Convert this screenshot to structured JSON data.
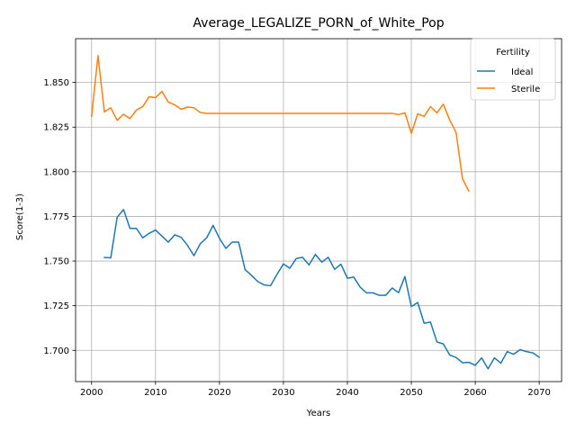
{
  "chart_data": {
    "type": "line",
    "title": "Average_LEGALIZE_PORN_of_White_Pop",
    "xlabel": "Years",
    "ylabel": "Score(1-3)",
    "xlim": [
      1997.5,
      2073.5
    ],
    "ylim": [
      1.6825,
      1.8745
    ],
    "xticks": [
      2000,
      2010,
      2020,
      2030,
      2040,
      2050,
      2060,
      2070
    ],
    "xtick_labels": [
      "2000",
      "2010",
      "2020",
      "2030",
      "2040",
      "2050",
      "2060",
      "2070"
    ],
    "yticks": [
      1.7,
      1.725,
      1.75,
      1.775,
      1.8,
      1.825,
      1.85
    ],
    "ytick_labels": [
      "1.700",
      "1.725",
      "1.750",
      "1.775",
      "1.800",
      "1.825",
      "1.850"
    ],
    "grid": true,
    "legend": {
      "title": "Fertility",
      "position": "top-right"
    },
    "series": [
      {
        "name": "Ideal",
        "color": "#1f77b4",
        "x": [
          2002,
          2003,
          2004,
          2005,
          2006,
          2007,
          2008,
          2009,
          2010,
          2011,
          2012,
          2013,
          2014,
          2015,
          2016,
          2017,
          2018,
          2019,
          2020,
          2021,
          2022,
          2023,
          2024,
          2025,
          2026,
          2027,
          2028,
          2029,
          2030,
          2031,
          2032,
          2033,
          2034,
          2035,
          2036,
          2037,
          2038,
          2039,
          2040,
          2041,
          2042,
          2043,
          2044,
          2045,
          2046,
          2047,
          2048,
          2049,
          2050,
          2051,
          2052,
          2053,
          2054,
          2055,
          2056,
          2057,
          2058,
          2059,
          2060,
          2061,
          2062,
          2063,
          2064,
          2065,
          2066,
          2067,
          2068,
          2069,
          2070
        ],
        "y": [
          1.752,
          1.7518,
          1.7745,
          1.7788,
          1.7683,
          1.7683,
          1.763,
          1.7655,
          1.7674,
          1.764,
          1.7606,
          1.7647,
          1.7633,
          1.7588,
          1.753,
          1.7597,
          1.763,
          1.77,
          1.7627,
          1.7571,
          1.7606,
          1.7606,
          1.7452,
          1.742,
          1.7385,
          1.7366,
          1.7362,
          1.7426,
          1.7484,
          1.746,
          1.7514,
          1.7521,
          1.7478,
          1.7537,
          1.7494,
          1.7521,
          1.7454,
          1.7482,
          1.7404,
          1.741,
          1.7354,
          1.7322,
          1.7322,
          1.7308,
          1.7308,
          1.7349,
          1.7323,
          1.7413,
          1.7245,
          1.7268,
          1.7152,
          1.7158,
          1.7047,
          1.7036,
          1.6974,
          1.696,
          1.6931,
          1.6933,
          1.6916,
          1.6958,
          1.6897,
          1.6958,
          1.6928,
          1.6993,
          1.6978,
          1.7004,
          1.6993,
          1.6986,
          1.6961
        ]
      },
      {
        "name": "Sterile",
        "color": "#ff7f0e",
        "x": [
          2000,
          2001,
          2002,
          2003,
          2004,
          2005,
          2006,
          2007,
          2008,
          2009,
          2010,
          2011,
          2012,
          2013,
          2014,
          2015,
          2016,
          2017,
          2018,
          2019,
          2020,
          2021,
          2022,
          2023,
          2024,
          2025,
          2026,
          2027,
          2028,
          2029,
          2030,
          2031,
          2032,
          2033,
          2034,
          2035,
          2036,
          2037,
          2038,
          2039,
          2040,
          2041,
          2042,
          2043,
          2044,
          2045,
          2046,
          2047,
          2048,
          2049,
          2050,
          2051,
          2052,
          2053,
          2054,
          2055,
          2056,
          2057,
          2058,
          2059
        ],
        "y": [
          1.831,
          1.865,
          1.8335,
          1.8358,
          1.8288,
          1.8322,
          1.8298,
          1.8345,
          1.8365,
          1.842,
          1.8415,
          1.845,
          1.839,
          1.8375,
          1.835,
          1.8362,
          1.8358,
          1.8332,
          1.8327,
          1.8327,
          1.8327,
          1.8327,
          1.8327,
          1.8327,
          1.8327,
          1.8327,
          1.8327,
          1.8327,
          1.8327,
          1.8327,
          1.8327,
          1.8327,
          1.8327,
          1.8327,
          1.8327,
          1.8327,
          1.8327,
          1.8327,
          1.8327,
          1.8327,
          1.8327,
          1.8327,
          1.8327,
          1.8327,
          1.8327,
          1.8327,
          1.8327,
          1.8327,
          1.832,
          1.833,
          1.8215,
          1.8325,
          1.831,
          1.8365,
          1.833,
          1.8378,
          1.829,
          1.822,
          1.796,
          1.7892
        ]
      }
    ]
  }
}
